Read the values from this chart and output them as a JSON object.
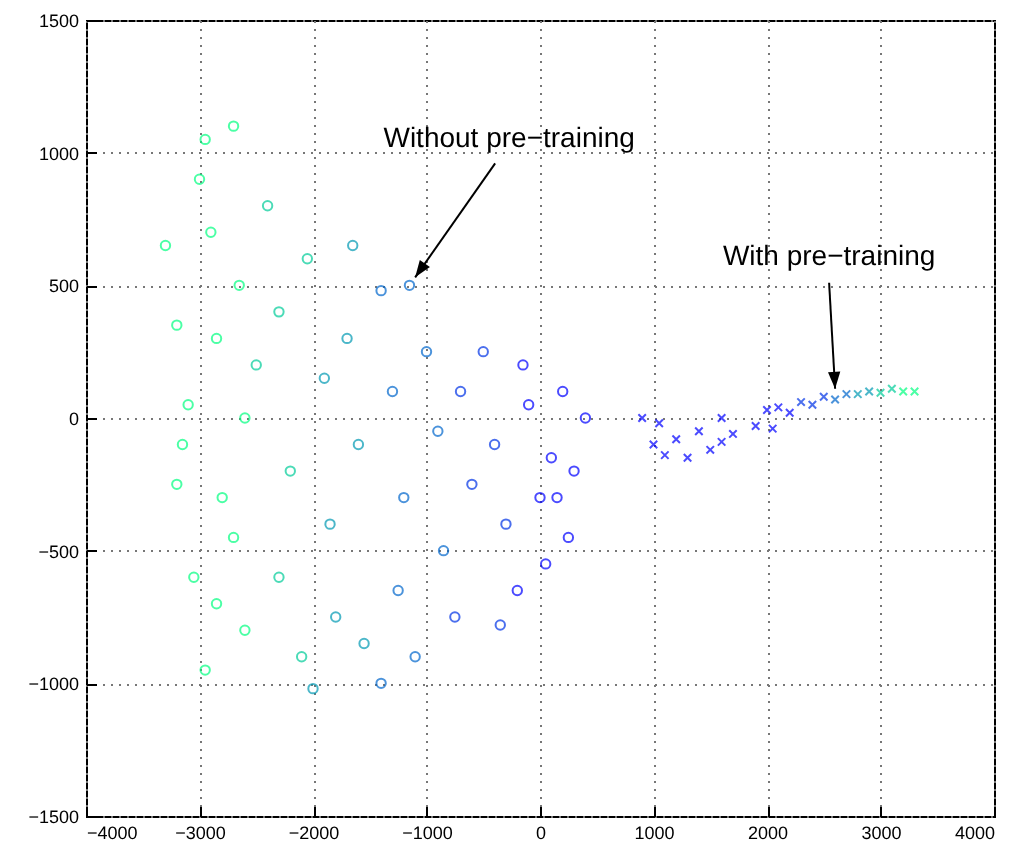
{
  "chart_data": {
    "type": "scatter",
    "xlim": [
      -4000,
      4000
    ],
    "ylim": [
      -1500,
      1500
    ],
    "xticks": [
      -4000,
      -3000,
      -2000,
      -1000,
      0,
      1000,
      2000,
      3000,
      4000
    ],
    "yticks": [
      -1500,
      -1000,
      -500,
      0,
      500,
      1000,
      1500
    ],
    "grid": true,
    "annotations": [
      {
        "text": "Without pre−training",
        "x": -1100,
        "y": 530
      },
      {
        "text": "With pre−training",
        "x": 2600,
        "y": 110
      }
    ],
    "series": [
      {
        "marker": "circle",
        "x": [
          -3300,
          -3200,
          -3150,
          -3100,
          -3000,
          -2950,
          -2900,
          -2850,
          -2800,
          -2850,
          -2950,
          -3050,
          -2700,
          -2650,
          -2600,
          -2700,
          -2600,
          -3200,
          -2500,
          -2400,
          -2300,
          -2200,
          -2300,
          -2100,
          -2050,
          -1900,
          -1850,
          -1800,
          -2000,
          -1700,
          -1600,
          -1550,
          -1650,
          -1400,
          -1300,
          -1200,
          -1250,
          -1100,
          -1000,
          -900,
          -850,
          -750,
          -700,
          -600,
          -1150,
          -1400,
          -500,
          -400,
          -300,
          -200,
          -100,
          0,
          100,
          200,
          300,
          250,
          -150,
          50,
          400,
          -350,
          150
        ],
        "values": [
          650,
          350,
          -100,
          50,
          900,
          1050,
          700,
          300,
          -300,
          -700,
          -950,
          -600,
          1100,
          500,
          0,
          -450,
          -800,
          -250,
          200,
          800,
          400,
          -200,
          -600,
          -900,
          600,
          150,
          -400,
          -750,
          -1020,
          300,
          -100,
          -850,
          650,
          480,
          100,
          -300,
          -650,
          -900,
          250,
          -50,
          -500,
          -750,
          100,
          -250,
          500,
          -1000,
          250,
          -100,
          -400,
          -650,
          50,
          -300,
          -150,
          100,
          -200,
          -450,
          200,
          -550,
          0,
          -780,
          -300
        ],
        "colors": [
          "#00ff80",
          "#00ff80",
          "#00ff80",
          "#00ff80",
          "#00ff80",
          "#00ff80",
          "#00ff80",
          "#00ff80",
          "#00ff80",
          "#00ff80",
          "#00ff80",
          "#00ff80",
          "#00ff80",
          "#00ff80",
          "#00ff80",
          "#00ff80",
          "#00ff80",
          "#00ff80",
          "#00cc99",
          "#00cc99",
          "#00cc99",
          "#00cc99",
          "#00cc99",
          "#00cc99",
          "#00cc99",
          "#0099b3",
          "#0099b3",
          "#0099b3",
          "#0099b3",
          "#0099b3",
          "#0099b3",
          "#0099b3",
          "#0099b3",
          "#0066cc",
          "#0066cc",
          "#0066cc",
          "#0066cc",
          "#0066cc",
          "#0066cc",
          "#0066cc",
          "#0066cc",
          "#0033e6",
          "#0033e6",
          "#0033e6",
          "#0066cc",
          "#0066cc",
          "#0033e6",
          "#0033e6",
          "#0033e6",
          "#0000ff",
          "#0000ff",
          "#0000ff",
          "#0000ff",
          "#0000ff",
          "#0000ff",
          "#0000ff",
          "#0000ff",
          "#0000ff",
          "#0000ff",
          "#0033e6",
          "#0000ff"
        ]
      },
      {
        "marker": "cross",
        "x": [
          900,
          1000,
          1050,
          1200,
          1300,
          1400,
          1500,
          1600,
          1700,
          1900,
          2000,
          2100,
          2200,
          2300,
          2400,
          2500,
          2600,
          2700,
          2800,
          2900,
          3000,
          3100,
          3200,
          3300,
          1100,
          1600,
          2050
        ],
        "values": [
          0,
          -100,
          -20,
          -80,
          -150,
          -50,
          -120,
          0,
          -60,
          -30,
          30,
          40,
          20,
          60,
          50,
          80,
          70,
          90,
          90,
          100,
          95,
          110,
          100,
          100,
          -140,
          -90,
          -40
        ],
        "colors": [
          "#0000ff",
          "#0000ff",
          "#0000ff",
          "#0000ff",
          "#0000ff",
          "#0000ff",
          "#0000ff",
          "#0000ff",
          "#0000ff",
          "#0000ff",
          "#0000ff",
          "#0000ff",
          "#0000ff",
          "#0033e6",
          "#0033e6",
          "#0033e6",
          "#0066cc",
          "#0066cc",
          "#0099b3",
          "#0099b3",
          "#00cc99",
          "#00cc99",
          "#00ff80",
          "#00ff80",
          "#0000ff",
          "#0000ff",
          "#0000ff"
        ]
      }
    ]
  }
}
